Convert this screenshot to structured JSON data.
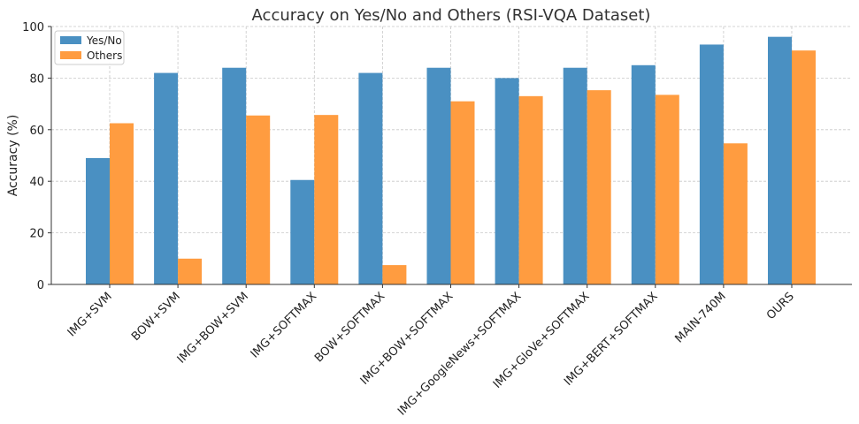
{
  "chart_data": {
    "type": "bar",
    "title": "Accuracy on Yes/No and Others (RSI-VQA Dataset)",
    "xlabel": "",
    "ylabel": "Accuracy (%)",
    "ylim": [
      0,
      100
    ],
    "yticks": [
      0,
      20,
      40,
      60,
      80,
      100
    ],
    "grid": true,
    "legend_position": "top-left",
    "categories": [
      "IMG+SVM",
      "BOW+SVM",
      "IMG+BOW+SVM",
      "IMG+SOFTMAX",
      "BOW+SOFTMAX",
      "IMG+BOW+SOFTMAX",
      "IMG+GoogleNews+SOFTMAX",
      "IMG+GloVe+SOFTMAX",
      "IMG+BERT+SOFTMAX",
      "MAIN-740M",
      "OURS"
    ],
    "series": [
      {
        "name": "Yes/No",
        "color": "#4a90c2",
        "values": [
          49,
          82,
          84,
          40.5,
          82,
          84,
          80,
          84,
          85,
          93,
          96
        ]
      },
      {
        "name": "Others",
        "color": "#ff9c40",
        "values": [
          62.5,
          10,
          65.5,
          65.7,
          7.5,
          71,
          73,
          75.3,
          73.5,
          54.7,
          90.7
        ]
      }
    ]
  }
}
